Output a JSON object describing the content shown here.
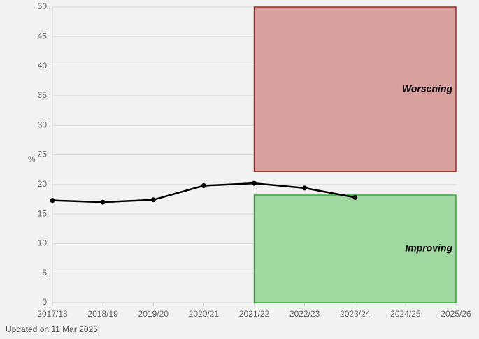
{
  "chart_data": {
    "type": "line",
    "categories": [
      "2017/18",
      "2018/19",
      "2019/20",
      "2020/21",
      "2021/22",
      "2022/23",
      "2023/24",
      "2024/25",
      "2025/26"
    ],
    "values": [
      17.3,
      17.0,
      17.4,
      19.8,
      20.2,
      19.4,
      17.8,
      null,
      null
    ],
    "color": "#000000",
    "y_label": "%",
    "ylim": [
      0,
      50
    ],
    "yticks": [
      0,
      5,
      10,
      15,
      20,
      25,
      30,
      35,
      40,
      45,
      50
    ],
    "grid": true,
    "regions": [
      {
        "label": "Worsening",
        "x": [
          "2021/22",
          "2025/26"
        ],
        "ylim": [
          22.2,
          50
        ],
        "color": "#d9a0a0",
        "border": "#b22222"
      },
      {
        "label": "Improving",
        "x": [
          "2021/22",
          "2025/26"
        ],
        "ylim": [
          0,
          18.2
        ],
        "color": "#a0d9a0",
        "border": "#2eae2e"
      }
    ]
  },
  "footer": "Updated on 11 Mar 2025"
}
